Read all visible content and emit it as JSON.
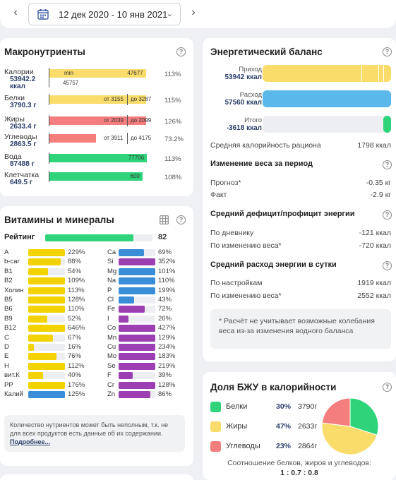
{
  "date_range": "12 дек 2020 - 10 янв 2021",
  "macro": {
    "title": "Макронутриенты",
    "rows": [
      {
        "label": "Калории",
        "value": "53942.2",
        "unit": "ккал",
        "pct": "113%",
        "fill": 0.86,
        "color": "#f9dc6a",
        "left_text": "min",
        "right_text": "47677",
        "below_text": "45757"
      },
      {
        "label": "Белки",
        "value": "3790.3 г",
        "pct": "115%",
        "fill": 0.86,
        "color": "#f9dc6a",
        "from_text": "от 3155",
        "to_text": "до 3287"
      },
      {
        "label": "Жиры",
        "value": "2633.4 г",
        "pct": "126%",
        "fill": 0.86,
        "color": "#f47d7d",
        "from_text": "от 2039",
        "to_text": "до 2099"
      },
      {
        "label": "Углеводы",
        "value": "2863.5 г",
        "pct": "73.2%",
        "fill": 0.42,
        "color": "#f47d7d",
        "from_text": "от 3911",
        "to_text": "до 4175"
      },
      {
        "label": "Вода",
        "value": "87488 г",
        "pct": "113%",
        "fill": 0.87,
        "color": "#2fd37a",
        "right_text": "77706"
      },
      {
        "label": "Клетчатка",
        "value": "649.5 г",
        "pct": "108%",
        "fill": 0.83,
        "color": "#2fd37a",
        "right_text": "600"
      }
    ]
  },
  "vitamins": {
    "title": "Витамины и минералы",
    "rating_label": "Рейтинг",
    "rating_value": "82",
    "rating_fill": 0.82,
    "note": "Количество нутриентов может быть неполным, т.к. не для всех продуктов есть данные об их содержании.",
    "note_link": "Подробнее...",
    "left": [
      {
        "name": "A",
        "pct": "229%",
        "fill": 1.0,
        "color": "#f2d200"
      },
      {
        "name": "b-car",
        "pct": "88%",
        "fill": 0.88,
        "color": "#f2d200"
      },
      {
        "name": "B1",
        "pct": "54%",
        "fill": 0.54,
        "color": "#f2d200"
      },
      {
        "name": "B2",
        "pct": "109%",
        "fill": 1.0,
        "color": "#f2d200"
      },
      {
        "name": "Холин",
        "pct": "113%",
        "fill": 1.0,
        "color": "#f2d200"
      },
      {
        "name": "B5",
        "pct": "128%",
        "fill": 1.0,
        "color": "#f2d200"
      },
      {
        "name": "B6",
        "pct": "110%",
        "fill": 1.0,
        "color": "#f2d200"
      },
      {
        "name": "B9",
        "pct": "52%",
        "fill": 0.52,
        "color": "#f2d200"
      },
      {
        "name": "B12",
        "pct": "646%",
        "fill": 1.0,
        "color": "#f2d200"
      },
      {
        "name": "C",
        "pct": "67%",
        "fill": 0.67,
        "color": "#f2d200"
      },
      {
        "name": "D",
        "pct": "16%",
        "fill": 0.16,
        "color": "#f2d200"
      },
      {
        "name": "E",
        "pct": "76%",
        "fill": 0.76,
        "color": "#f2d200"
      },
      {
        "name": "H",
        "pct": "112%",
        "fill": 1.0,
        "color": "#f2d200"
      },
      {
        "name": "вит.К",
        "pct": "40%",
        "fill": 0.4,
        "color": "#f2d200"
      },
      {
        "name": "PP",
        "pct": "176%",
        "fill": 1.0,
        "color": "#f2d200"
      },
      {
        "name": "Калий",
        "pct": "125%",
        "fill": 1.0,
        "color": "#3a8ed8"
      }
    ],
    "right": [
      {
        "name": "Ca",
        "pct": "69%",
        "fill": 0.69,
        "color": "#3a8ed8"
      },
      {
        "name": "Si",
        "pct": "352%",
        "fill": 1.0,
        "color": "#9b3fb3"
      },
      {
        "name": "Mg",
        "pct": "101%",
        "fill": 1.0,
        "color": "#3a8ed8"
      },
      {
        "name": "Na",
        "pct": "110%",
        "fill": 1.0,
        "color": "#3a8ed8"
      },
      {
        "name": "P",
        "pct": "199%",
        "fill": 1.0,
        "color": "#3a8ed8"
      },
      {
        "name": "Cl",
        "pct": "43%",
        "fill": 0.43,
        "color": "#3a8ed8"
      },
      {
        "name": "Fe",
        "pct": "72%",
        "fill": 0.72,
        "color": "#9b3fb3"
      },
      {
        "name": "I",
        "pct": "26%",
        "fill": 0.26,
        "color": "#9b3fb3"
      },
      {
        "name": "Co",
        "pct": "427%",
        "fill": 1.0,
        "color": "#9b3fb3"
      },
      {
        "name": "Mn",
        "pct": "129%",
        "fill": 1.0,
        "color": "#9b3fb3"
      },
      {
        "name": "Cu",
        "pct": "234%",
        "fill": 1.0,
        "color": "#9b3fb3"
      },
      {
        "name": "Mo",
        "pct": "183%",
        "fill": 1.0,
        "color": "#9b3fb3"
      },
      {
        "name": "Se",
        "pct": "219%",
        "fill": 1.0,
        "color": "#9b3fb3"
      },
      {
        "name": "F",
        "pct": "39%",
        "fill": 0.39,
        "color": "#9b3fb3"
      },
      {
        "name": "Cr",
        "pct": "128%",
        "fill": 1.0,
        "color": "#9b3fb3"
      },
      {
        "name": "Zn",
        "pct": "86%",
        "fill": 0.86,
        "color": "#9b3fb3"
      }
    ]
  },
  "energy": {
    "title": "Энергетический баланс",
    "income_label": "Приход",
    "income_value": "53942 ккал",
    "expense_label": "Расход",
    "expense_value": "57560 ккал",
    "total_label": "Итого",
    "total_value": "-3618 ккал",
    "avg_label": "Средняя калорийность рациона",
    "avg_value": "1798 ккал",
    "weight_title": "Изменение веса за период",
    "forecast_label": "Прогноз*",
    "forecast_value": "-0.35 кг",
    "fact_label": "Факт",
    "fact_value": "-2.9 кг",
    "deficit_title": "Средний дефицит/профицит энергии",
    "diary_label": "По дневнику",
    "diary_value": "-121 ккал",
    "byweight_label": "По изменению веса*",
    "byweight_value": "-720 ккал",
    "daily_title": "Средний расход энергии в сутки",
    "settings_label": "По настройкам",
    "settings_value": "1919 ккал",
    "byweight2_label": "По изменению веса*",
    "byweight2_value": "2552 ккал",
    "note": "* Расчёт не учитывает возможные колебания веса из-за изменения водного баланса",
    "colors": {
      "income": "#f9dc6a",
      "expense": "#5bb8ea",
      "total": "#2fd37a"
    }
  },
  "bju": {
    "title": "Доля БЖУ в калорийности",
    "items": [
      {
        "name": "Белки",
        "pct": "30%",
        "grams": "3790г",
        "color": "#2fd37a",
        "share": 0.3
      },
      {
        "name": "Жиры",
        "pct": "47%",
        "grams": "2633г",
        "color": "#f9dc6a",
        "share": 0.47
      },
      {
        "name": "Углеводы",
        "pct": "23%",
        "grams": "2864г",
        "color": "#f47d7d",
        "share": 0.23
      }
    ],
    "ratio_label": "Соотношение белков, жиров и углеводов:",
    "ratio_value": "1 : 0.7 : 0.8"
  }
}
